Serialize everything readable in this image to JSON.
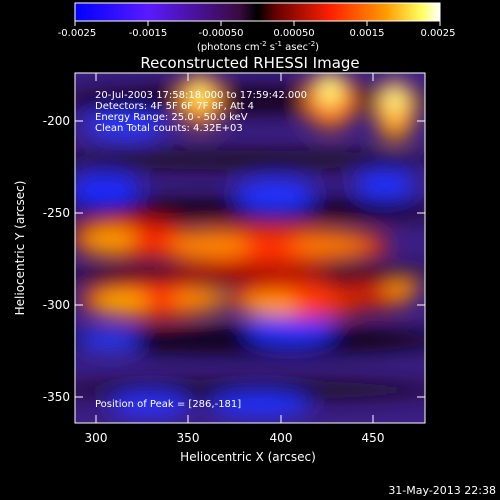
{
  "title": "Reconstructed RHESSI Image",
  "colorbar": {
    "ticks": [
      "-0.0025",
      "-0.0015",
      "-0.00050",
      "0.00050",
      "0.0015",
      "0.0025"
    ],
    "range": [
      -0.0025,
      0.0025
    ],
    "unit_label_parts": [
      "(photons cm",
      "-2",
      " s",
      "-1",
      " asec",
      "-2",
      ")"
    ]
  },
  "annotations": {
    "time": "20-Jul-2003 17:58:18.000 to 17:59:42.000",
    "detectors": "Detectors: 4F 5F 6F 7F 8F, Att 4",
    "energy": "Energy Range: 25.0 - 50.0 keV",
    "clean": "Clean     Total counts: 4.32E+03",
    "peak": "Position of Peak = [286,-181]"
  },
  "axes": {
    "xlabel": "Heliocentric X (arcsec)",
    "ylabel": "Heliocentric Y (arcsec)",
    "xticks": [
      "300",
      "350",
      "400",
      "450"
    ],
    "yticks": [
      "-200",
      "-250",
      "-300",
      "-350"
    ],
    "xrange": [
      288,
      477
    ],
    "yrange": [
      -367,
      -177
    ]
  },
  "footer": "31-May-2013 22:38",
  "colors": {
    "background": "#000000",
    "text": "#ffffff",
    "colormap": "IDL color table 3 (blue-purple-red-yellow-white)"
  }
}
